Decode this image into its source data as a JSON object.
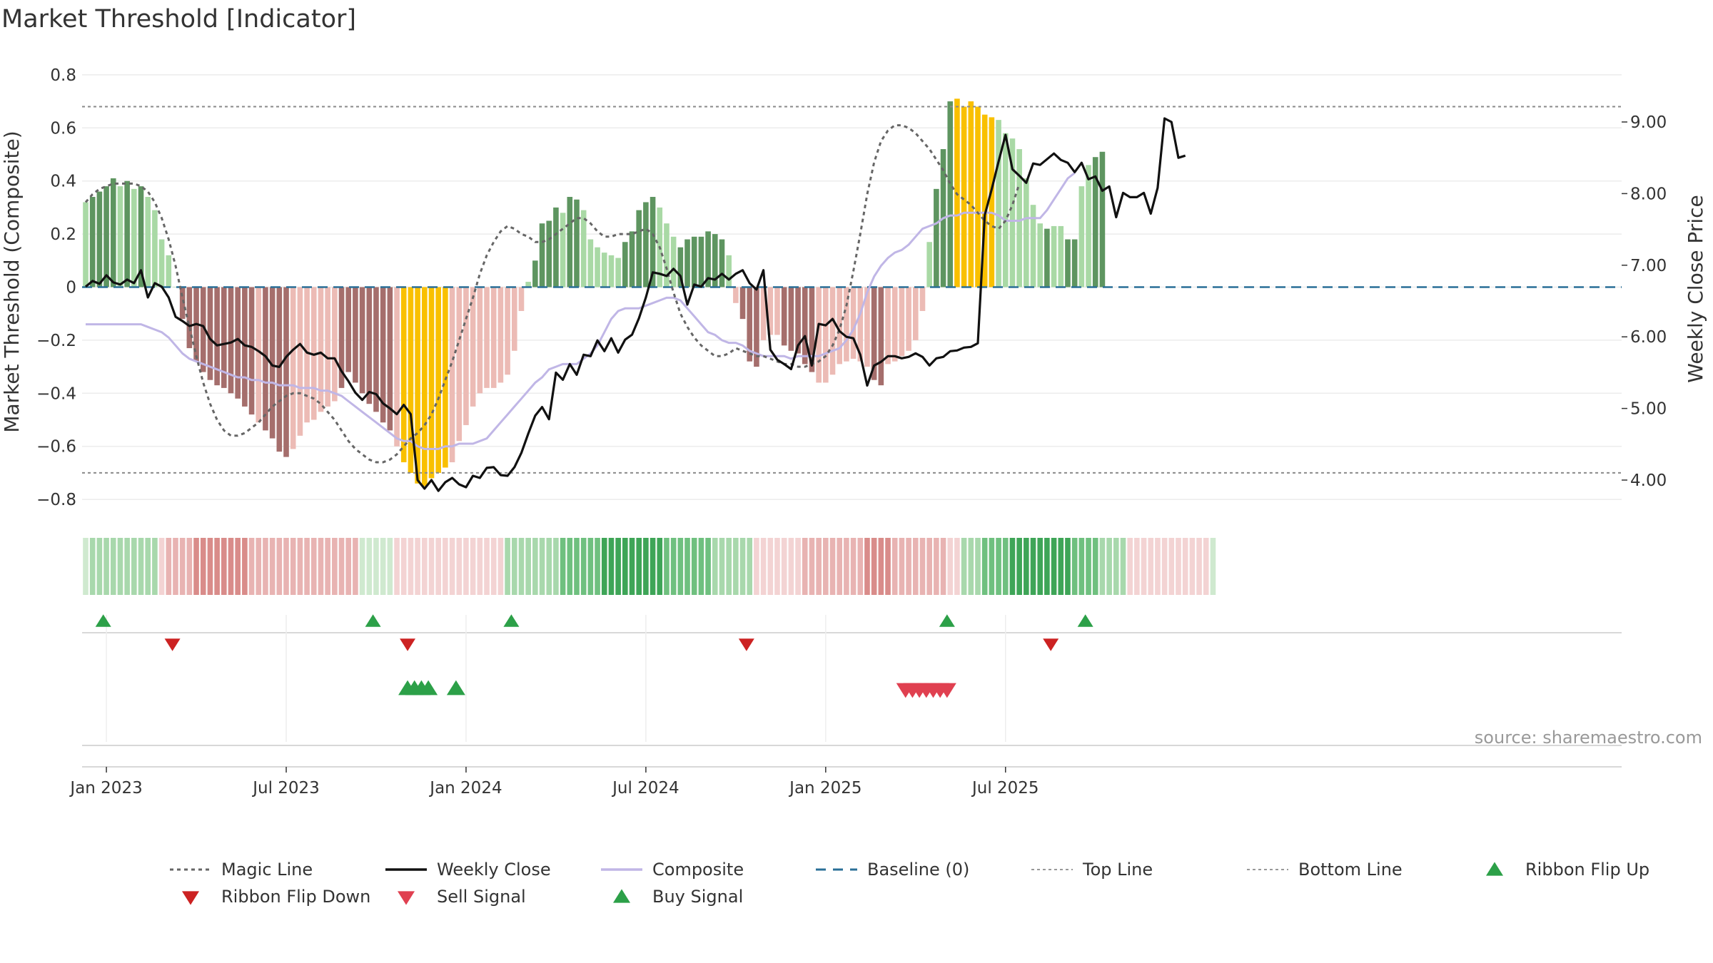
{
  "chart_data": {
    "type": "bar",
    "title": "Market Threshold [Indicator]",
    "ylabel": "Market Threshold (Composite)",
    "y2label": "Weekly Close Price",
    "source": "source: sharemaestro.com",
    "ylim": [
      -0.84,
      0.84
    ],
    "y2lim": [
      3.42,
      9.98
    ],
    "yticks": [
      {
        "v": 0.8,
        "label": "0.8"
      },
      {
        "v": 0.6,
        "label": "0.6"
      },
      {
        "v": 0.4,
        "label": "0.4"
      },
      {
        "v": 0.2,
        "label": "0.2"
      },
      {
        "v": 0,
        "label": "0"
      },
      {
        "v": -0.2,
        "label": "−0.2"
      },
      {
        "v": -0.4,
        "label": "−0.4"
      },
      {
        "v": -0.6,
        "label": "−0.6"
      },
      {
        "v": -0.8,
        "label": "−0.8"
      }
    ],
    "y2ticks": [
      {
        "v": 9.0,
        "label": "9.00"
      },
      {
        "v": 8.0,
        "label": "8.00"
      },
      {
        "v": 7.0,
        "label": "7.00"
      },
      {
        "v": 6.0,
        "label": "6.00"
      },
      {
        "v": 5.0,
        "label": "5.00"
      },
      {
        "v": 4.0,
        "label": "4.00"
      }
    ],
    "xticks": [
      {
        "week": 3,
        "label": "Jan 2023"
      },
      {
        "week": 29,
        "label": "Jul 2023"
      },
      {
        "week": 55,
        "label": "Jan 2024"
      },
      {
        "week": 81,
        "label": "Jul 2024"
      },
      {
        "week": 107,
        "label": "Jan 2025"
      },
      {
        "week": 133,
        "label": "Jul 2025"
      }
    ],
    "weeks": 144,
    "top_line": 0.68,
    "bottom_line": -0.7,
    "composite_bars": [
      0.32,
      0.34,
      0.36,
      0.38,
      0.41,
      0.38,
      0.4,
      0.37,
      0.38,
      0.34,
      0.29,
      0.18,
      0.12,
      0,
      -0.12,
      -0.23,
      -0.28,
      -0.32,
      -0.35,
      -0.37,
      -0.38,
      -0.4,
      -0.42,
      -0.45,
      -0.48,
      -0.51,
      -0.54,
      -0.57,
      -0.62,
      -0.64,
      -0.61,
      -0.56,
      -0.51,
      -0.5,
      -0.47,
      -0.45,
      -0.43,
      -0.38,
      -0.32,
      -0.36,
      -0.4,
      -0.44,
      -0.47,
      -0.51,
      -0.54,
      -0.6,
      -0.66,
      -0.7,
      -0.74,
      -0.75,
      -0.72,
      -0.7,
      -0.68,
      -0.66,
      -0.58,
      -0.52,
      -0.45,
      -0.4,
      -0.38,
      -0.38,
      -0.36,
      -0.33,
      -0.24,
      -0.09,
      0.02,
      0.1,
      0.24,
      0.25,
      0.3,
      0.28,
      0.34,
      0.33,
      0.29,
      0.18,
      0.15,
      0.13,
      0.12,
      0.11,
      0.17,
      0.21,
      0.29,
      0.32,
      0.34,
      0.3,
      0.24,
      0.19,
      0.15,
      0.18,
      0.19,
      0.19,
      0.21,
      0.2,
      0.18,
      0.12,
      -0.06,
      -0.12,
      -0.28,
      -0.3,
      -0.2,
      -0.18,
      -0.18,
      -0.22,
      -0.24,
      -0.25,
      -0.29,
      -0.32,
      -0.36,
      -0.36,
      -0.33,
      -0.29,
      -0.28,
      -0.27,
      -0.28,
      -0.3,
      -0.35,
      -0.37,
      -0.29,
      -0.28,
      -0.26,
      -0.24,
      -0.2,
      -0.09,
      0.17,
      0.37,
      0.52,
      0.7,
      0.71,
      0.68,
      0.7,
      0.68,
      0.65,
      0.64,
      0.63,
      0.58,
      0.56,
      0.52,
      0.41,
      0.31,
      0.24,
      0.22,
      0.23,
      0.23,
      0.18,
      0.18,
      0.38,
      0.46,
      0.49,
      0.51
    ],
    "bar_state": "0=light green, 1=dark green, 2=light red, 3=dark red, 4=gold",
    "bar_states": [
      0,
      1,
      1,
      1,
      1,
      0,
      1,
      0,
      1,
      0,
      0,
      0,
      0,
      0,
      3,
      3,
      3,
      3,
      3,
      3,
      3,
      3,
      3,
      3,
      3,
      2,
      3,
      3,
      3,
      3,
      2,
      2,
      2,
      2,
      2,
      2,
      2,
      3,
      3,
      3,
      3,
      3,
      3,
      3,
      3,
      2,
      4,
      4,
      4,
      4,
      4,
      4,
      4,
      2,
      2,
      2,
      2,
      2,
      2,
      2,
      2,
      2,
      2,
      2,
      0,
      1,
      1,
      1,
      1,
      0,
      1,
      1,
      0,
      0,
      0,
      0,
      0,
      0,
      1,
      1,
      1,
      1,
      1,
      0,
      0,
      0,
      1,
      1,
      1,
      1,
      1,
      1,
      1,
      0,
      2,
      3,
      3,
      3,
      2,
      2,
      2,
      3,
      3,
      3,
      3,
      3,
      2,
      2,
      2,
      2,
      2,
      2,
      2,
      2,
      3,
      3,
      2,
      2,
      2,
      2,
      2,
      2,
      0,
      1,
      1,
      1,
      4,
      4,
      4,
      4,
      4,
      4,
      0,
      0,
      0,
      0,
      0,
      0,
      0,
      1,
      0,
      0,
      1,
      1,
      0,
      0,
      1,
      1,
      1,
      1
    ],
    "magic_line": [
      0.32,
      0.35,
      0.37,
      0.38,
      0.39,
      0.39,
      0.39,
      0.39,
      0.38,
      0.36,
      0.32,
      0.26,
      0.18,
      0.08,
      -0.04,
      -0.15,
      -0.26,
      -0.36,
      -0.44,
      -0.5,
      -0.54,
      -0.56,
      -0.56,
      -0.55,
      -0.53,
      -0.51,
      -0.48,
      -0.45,
      -0.43,
      -0.41,
      -0.4,
      -0.4,
      -0.41,
      -0.42,
      -0.44,
      -0.47,
      -0.5,
      -0.54,
      -0.58,
      -0.61,
      -0.63,
      -0.65,
      -0.66,
      -0.66,
      -0.65,
      -0.63,
      -0.6,
      -0.57,
      -0.55,
      -0.52,
      -0.48,
      -0.42,
      -0.35,
      -0.28,
      -0.2,
      -0.12,
      -0.04,
      0.05,
      0.12,
      0.17,
      0.21,
      0.23,
      0.22,
      0.2,
      0.19,
      0.17,
      0.17,
      0.18,
      0.2,
      0.22,
      0.24,
      0.26,
      0.26,
      0.24,
      0.21,
      0.19,
      0.19,
      0.2,
      0.2,
      0.2,
      0.21,
      0.22,
      0.2,
      0.15,
      0.07,
      -0.02,
      -0.1,
      -0.15,
      -0.19,
      -0.22,
      -0.24,
      -0.26,
      -0.26,
      -0.25,
      -0.23,
      -0.24,
      -0.25,
      -0.26,
      -0.26,
      -0.27,
      -0.28,
      -0.29,
      -0.29,
      -0.3,
      -0.3,
      -0.29,
      -0.28,
      -0.26,
      -0.22,
      -0.16,
      -0.07,
      0.06,
      0.2,
      0.35,
      0.47,
      0.55,
      0.59,
      0.61,
      0.61,
      0.6,
      0.58,
      0.55,
      0.52,
      0.48,
      0.44,
      0.39,
      0.35,
      0.33,
      0.31,
      0.28,
      0.25,
      0.23,
      0.22,
      0.25,
      0.31,
      0.39
    ],
    "magic_line_start": 0,
    "magic_line_start_note": "",
    "weekly_close": [
      6.7,
      6.78,
      6.74,
      6.86,
      6.76,
      6.73,
      6.8,
      6.75,
      6.93,
      6.55,
      6.75,
      6.7,
      6.55,
      6.28,
      6.22,
      6.15,
      6.18,
      6.15,
      5.97,
      5.88,
      5.9,
      5.92,
      5.97,
      5.88,
      5.86,
      5.8,
      5.73,
      5.6,
      5.58,
      5.72,
      5.82,
      5.9,
      5.78,
      5.75,
      5.78,
      5.7,
      5.7,
      5.52,
      5.38,
      5.22,
      5.12,
      5.23,
      5.2,
      5.07,
      5.0,
      4.92,
      5.05,
      4.92,
      4.0,
      3.88,
      4.0,
      3.85,
      3.97,
      4.03,
      3.94,
      3.9,
      4.06,
      4.03,
      4.17,
      4.18,
      4.07,
      4.06,
      4.18,
      4.38,
      4.65,
      4.9,
      5.02,
      4.85,
      5.5,
      5.4,
      5.62,
      5.47,
      5.75,
      5.73,
      5.95,
      5.8,
      5.98,
      5.78,
      5.96,
      6.03,
      6.26,
      6.55,
      6.9,
      6.88,
      6.85,
      6.95,
      6.85,
      6.45,
      6.73,
      6.7,
      6.82,
      6.8,
      6.88,
      6.8,
      6.88,
      6.93,
      6.75,
      6.66,
      6.93,
      5.82,
      5.68,
      5.62,
      5.55,
      5.88,
      6.01,
      5.6,
      6.18,
      6.16,
      6.25,
      6.08,
      6.0,
      5.98,
      5.75,
      5.32,
      5.6,
      5.65,
      5.73,
      5.73,
      5.7,
      5.72,
      5.77,
      5.72,
      5.6,
      5.7,
      5.72,
      5.8,
      5.81,
      5.85,
      5.86,
      5.91,
      7.7,
      8.06,
      8.45,
      8.82,
      8.34,
      8.25,
      8.15,
      8.42,
      8.4,
      8.48,
      8.56,
      8.47,
      8.43,
      8.3,
      8.43,
      8.2,
      8.24,
      8.04,
      8.1,
      7.67,
      8.01,
      7.95,
      7.95,
      8.01,
      7.72,
      8.08,
      9.05,
      9.0,
      8.5,
      8.53
    ],
    "composite_line": [
      -0.14,
      -0.14,
      -0.14,
      -0.14,
      -0.14,
      -0.14,
      -0.14,
      -0.14,
      -0.14,
      -0.15,
      -0.16,
      -0.17,
      -0.19,
      -0.22,
      -0.25,
      -0.27,
      -0.28,
      -0.29,
      -0.3,
      -0.31,
      -0.32,
      -0.33,
      -0.34,
      -0.34,
      -0.35,
      -0.35,
      -0.36,
      -0.36,
      -0.37,
      -0.37,
      -0.37,
      -0.38,
      -0.38,
      -0.38,
      -0.39,
      -0.39,
      -0.4,
      -0.41,
      -0.43,
      -0.45,
      -0.47,
      -0.49,
      -0.51,
      -0.53,
      -0.55,
      -0.57,
      -0.58,
      -0.58,
      -0.6,
      -0.61,
      -0.61,
      -0.61,
      -0.6,
      -0.6,
      -0.59,
      -0.59,
      -0.59,
      -0.58,
      -0.57,
      -0.54,
      -0.51,
      -0.48,
      -0.45,
      -0.42,
      -0.39,
      -0.36,
      -0.34,
      -0.31,
      -0.3,
      -0.29,
      -0.29,
      -0.29,
      -0.27,
      -0.25,
      -0.22,
      -0.17,
      -0.12,
      -0.09,
      -0.08,
      -0.08,
      -0.08,
      -0.07,
      -0.06,
      -0.05,
      -0.04,
      -0.04,
      -0.05,
      -0.08,
      -0.11,
      -0.14,
      -0.17,
      -0.18,
      -0.2,
      -0.21,
      -0.21,
      -0.22,
      -0.24,
      -0.25,
      -0.26,
      -0.26,
      -0.26,
      -0.26,
      -0.27,
      -0.26,
      -0.26,
      -0.26,
      -0.26,
      -0.25,
      -0.24,
      -0.23,
      -0.2,
      -0.16,
      -0.1,
      -0.02,
      0.04,
      0.08,
      0.11,
      0.13,
      0.14,
      0.16,
      0.19,
      0.22,
      0.23,
      0.24,
      0.26,
      0.27,
      0.27,
      0.28,
      0.28,
      0.28,
      0.28,
      0.28,
      0.27,
      0.25,
      0.25,
      0.25,
      0.26,
      0.26,
      0.26,
      0.29,
      0.33,
      0.37,
      0.41,
      0.43
    ],
    "composite_line_start": 0,
    "ribbon": [
      0,
      1,
      1,
      1,
      1,
      1,
      1,
      1,
      1,
      1,
      1,
      -1,
      -2,
      -2,
      -2,
      -2,
      -3,
      -3,
      -3,
      -3,
      -3,
      -3,
      -3,
      -3,
      -2,
      -2,
      -2,
      -2,
      -2,
      -2,
      -2,
      -2,
      -2,
      -2,
      -2,
      -2,
      -2,
      -2,
      -2,
      -2,
      0,
      0,
      0,
      0,
      0,
      -1,
      -1,
      -1,
      -1,
      -1,
      -1,
      -1,
      -1,
      -1,
      -1,
      -1,
      -1,
      -1,
      -1,
      -1,
      -1,
      1,
      1,
      1,
      1,
      1,
      1,
      1,
      1,
      2,
      2,
      2,
      2,
      2,
      2,
      3,
      3,
      3,
      3,
      3,
      3,
      3,
      3,
      3,
      2,
      2,
      2,
      2,
      2,
      2,
      2,
      1,
      1,
      1,
      1,
      1,
      1,
      -1,
      -1,
      -1,
      -1,
      -1,
      -1,
      -1,
      -2,
      -2,
      -2,
      -2,
      -2,
      -2,
      -2,
      -2,
      -2,
      -3,
      -3,
      -3,
      -3,
      -2,
      -2,
      -2,
      -2,
      -2,
      -2,
      -2,
      -2,
      -1,
      -1,
      1,
      1,
      1,
      2,
      2,
      2,
      2,
      3,
      3,
      3,
      3,
      3,
      3,
      3,
      3,
      3,
      2,
      2,
      2,
      2,
      1,
      1,
      1,
      1,
      -1,
      -1,
      -1,
      -1,
      -1,
      -1,
      -1,
      -1,
      -1,
      -1,
      -1,
      -1,
      0
    ],
    "ribbon_flip_up": [
      1,
      40,
      60,
      123,
      143
    ],
    "ribbon_flip_down": [
      11,
      45,
      94,
      138
    ],
    "buy_signals": [
      45,
      46,
      47,
      48,
      52
    ],
    "sell_signals": [
      117,
      118,
      119,
      120,
      121,
      122,
      123
    ],
    "legend": [
      {
        "label": "Magic Line",
        "marker": "dotted",
        "color": "#666666"
      },
      {
        "label": "Weekly Close",
        "marker": "solid",
        "color": "#111111"
      },
      {
        "label": "Composite",
        "marker": "solid",
        "color": "#c0b6e6"
      },
      {
        "label": "Baseline (0)",
        "marker": "dashed",
        "color": "#2a6f97"
      },
      {
        "label": "Top Line",
        "marker": "dotted-light",
        "color": "#999999"
      },
      {
        "label": "Bottom Line",
        "marker": "dotted-light",
        "color": "#999999"
      },
      {
        "label": "Ribbon Flip Up",
        "marker": "tri-up",
        "color": "#2ca048"
      },
      {
        "label": "Ribbon Flip Down",
        "marker": "tri-down",
        "color": "#cc2222"
      },
      {
        "label": "Sell Signal",
        "marker": "tri-down",
        "color": "#e04050"
      },
      {
        "label": "Buy Signal",
        "marker": "tri-up",
        "color": "#2ca048"
      }
    ],
    "colors": {
      "bar_light_green": "#a9d9a5",
      "bar_dark_green": "#5e9560",
      "bar_light_red": "#ecbbb5",
      "bar_dark_red": "#a56e6c",
      "bar_gold": "#f9c000",
      "weekly_close": "#111111",
      "composite_line": "#c0b6e6",
      "magic_line": "#666666",
      "baseline": "#2a6f97",
      "flip_up": "#2ca048",
      "flip_down": "#cc2222",
      "sell": "#e04050",
      "buy": "#2ca048"
    }
  }
}
